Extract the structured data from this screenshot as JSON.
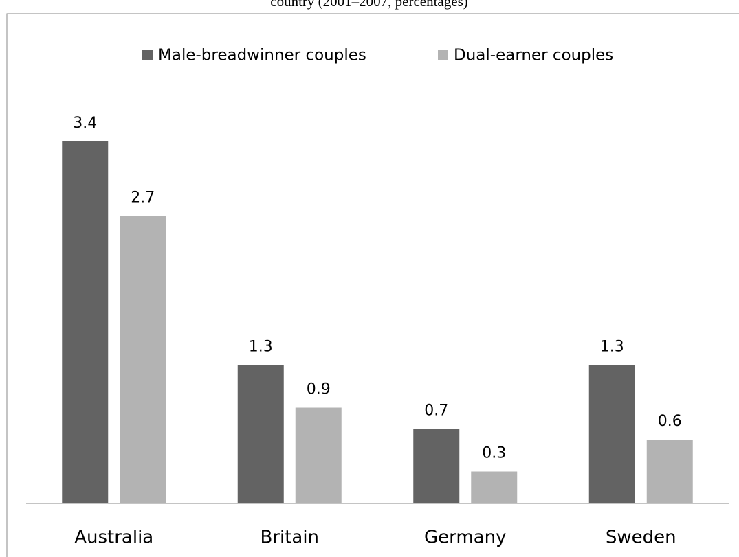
{
  "chart_data": {
    "type": "bar",
    "title": "country (2001–2007, percentages)",
    "categories": [
      "Australia",
      "Britain",
      "Germany",
      "Sweden"
    ],
    "series": [
      {
        "name": "Male-breadwinner couples",
        "color": "#636363",
        "values": [
          3.4,
          1.3,
          0.7,
          1.3
        ]
      },
      {
        "name": "Dual-earner couples",
        "color": "#b3b3b3",
        "values": [
          2.7,
          0.9,
          0.3,
          0.6
        ]
      }
    ],
    "ylim": [
      0,
      4
    ],
    "legend": "top"
  }
}
